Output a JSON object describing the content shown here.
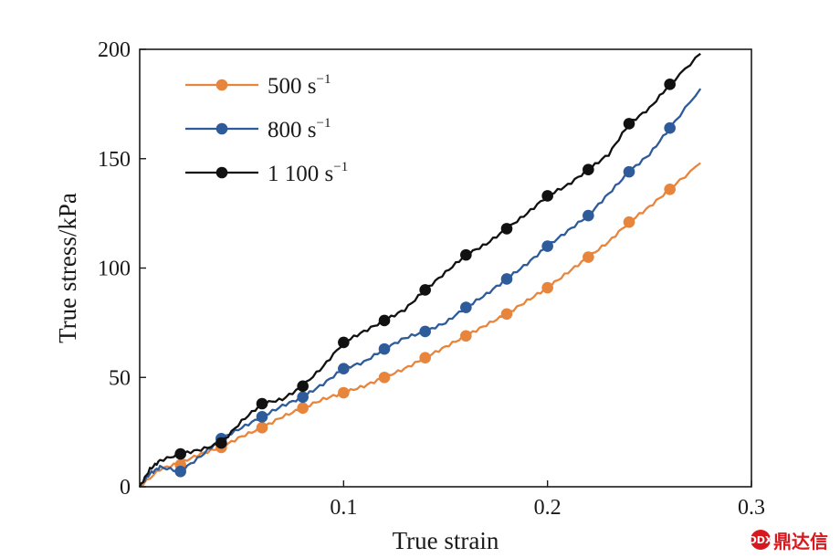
{
  "chart_data": {
    "type": "line",
    "xlabel": "True strain",
    "ylabel": "True stress/kPa",
    "xlim": [
      0,
      0.3
    ],
    "ylim": [
      0,
      200
    ],
    "x_ticks": [
      {
        "value": 0.1,
        "label": "0.1"
      },
      {
        "value": 0.2,
        "label": "0.2"
      },
      {
        "value": 0.3,
        "label": "0.3"
      }
    ],
    "y_ticks": [
      {
        "value": 0,
        "label": "0"
      },
      {
        "value": 50,
        "label": "50"
      },
      {
        "value": 100,
        "label": "100"
      },
      {
        "value": 150,
        "label": "150"
      },
      {
        "value": 200,
        "label": "200"
      }
    ],
    "grid": false,
    "legend_position": "top-left",
    "series": [
      {
        "name": "500 s",
        "name_superscript": "−1",
        "color": "#E8853D",
        "line": [
          [
            0,
            0
          ],
          [
            0.01,
            8
          ],
          [
            0.02,
            11
          ],
          [
            0.03,
            15
          ],
          [
            0.04,
            18
          ],
          [
            0.05,
            23
          ],
          [
            0.06,
            27
          ],
          [
            0.07,
            32
          ],
          [
            0.08,
            36
          ],
          [
            0.09,
            40
          ],
          [
            0.1,
            43
          ],
          [
            0.11,
            46
          ],
          [
            0.12,
            50
          ],
          [
            0.13,
            54
          ],
          [
            0.14,
            59
          ],
          [
            0.15,
            64
          ],
          [
            0.16,
            69
          ],
          [
            0.17,
            74
          ],
          [
            0.18,
            79
          ],
          [
            0.19,
            85
          ],
          [
            0.2,
            91
          ],
          [
            0.21,
            98
          ],
          [
            0.22,
            105
          ],
          [
            0.23,
            112
          ],
          [
            0.24,
            121
          ],
          [
            0.25,
            128
          ],
          [
            0.26,
            136
          ],
          [
            0.275,
            148
          ]
        ],
        "markers": [
          [
            0.02,
            10
          ],
          [
            0.04,
            18
          ],
          [
            0.06,
            27
          ],
          [
            0.08,
            36
          ],
          [
            0.1,
            43
          ],
          [
            0.12,
            50
          ],
          [
            0.14,
            59
          ],
          [
            0.16,
            69
          ],
          [
            0.18,
            79
          ],
          [
            0.2,
            91
          ],
          [
            0.22,
            105
          ],
          [
            0.24,
            121
          ],
          [
            0.26,
            136
          ]
        ]
      },
      {
        "name": "800 s",
        "name_superscript": "−1",
        "color": "#2E5B9A",
        "line": [
          [
            0,
            0
          ],
          [
            0.005,
            6
          ],
          [
            0.01,
            9
          ],
          [
            0.02,
            7
          ],
          [
            0.03,
            14
          ],
          [
            0.04,
            22
          ],
          [
            0.05,
            27
          ],
          [
            0.06,
            32
          ],
          [
            0.07,
            37
          ],
          [
            0.08,
            41
          ],
          [
            0.09,
            47
          ],
          [
            0.1,
            54
          ],
          [
            0.11,
            57
          ],
          [
            0.12,
            63
          ],
          [
            0.13,
            68
          ],
          [
            0.14,
            71
          ],
          [
            0.15,
            75
          ],
          [
            0.16,
            82
          ],
          [
            0.17,
            88
          ],
          [
            0.18,
            95
          ],
          [
            0.19,
            102
          ],
          [
            0.2,
            110
          ],
          [
            0.21,
            117
          ],
          [
            0.22,
            124
          ],
          [
            0.23,
            134
          ],
          [
            0.24,
            144
          ],
          [
            0.25,
            152
          ],
          [
            0.26,
            164
          ],
          [
            0.275,
            182
          ]
        ],
        "markers": [
          [
            0.02,
            7
          ],
          [
            0.04,
            22
          ],
          [
            0.06,
            32
          ],
          [
            0.08,
            41
          ],
          [
            0.1,
            54
          ],
          [
            0.12,
            63
          ],
          [
            0.14,
            71
          ],
          [
            0.16,
            82
          ],
          [
            0.18,
            95
          ],
          [
            0.2,
            110
          ],
          [
            0.22,
            124
          ],
          [
            0.24,
            144
          ],
          [
            0.26,
            164
          ]
        ]
      },
      {
        "name": "1 100 s",
        "name_superscript": "−1",
        "color": "#111111",
        "line": [
          [
            0,
            0
          ],
          [
            0.005,
            8
          ],
          [
            0.01,
            12
          ],
          [
            0.02,
            15
          ],
          [
            0.03,
            17
          ],
          [
            0.04,
            20
          ],
          [
            0.05,
            30
          ],
          [
            0.06,
            38
          ],
          [
            0.07,
            40
          ],
          [
            0.08,
            46
          ],
          [
            0.09,
            55
          ],
          [
            0.1,
            66
          ],
          [
            0.11,
            71
          ],
          [
            0.12,
            76
          ],
          [
            0.13,
            81
          ],
          [
            0.14,
            90
          ],
          [
            0.15,
            98
          ],
          [
            0.16,
            106
          ],
          [
            0.17,
            111
          ],
          [
            0.18,
            118
          ],
          [
            0.19,
            125
          ],
          [
            0.2,
            133
          ],
          [
            0.21,
            138
          ],
          [
            0.22,
            145
          ],
          [
            0.23,
            152
          ],
          [
            0.24,
            166
          ],
          [
            0.25,
            173
          ],
          [
            0.26,
            184
          ],
          [
            0.275,
            198
          ]
        ],
        "markers": [
          [
            0.02,
            15
          ],
          [
            0.04,
            20
          ],
          [
            0.06,
            38
          ],
          [
            0.08,
            46
          ],
          [
            0.1,
            66
          ],
          [
            0.12,
            76
          ],
          [
            0.14,
            90
          ],
          [
            0.16,
            106
          ],
          [
            0.18,
            118
          ],
          [
            0.2,
            133
          ],
          [
            0.22,
            145
          ],
          [
            0.24,
            166
          ],
          [
            0.26,
            184
          ]
        ]
      }
    ]
  },
  "watermark": {
    "badge": "DDX",
    "text": "鼎达信"
  }
}
